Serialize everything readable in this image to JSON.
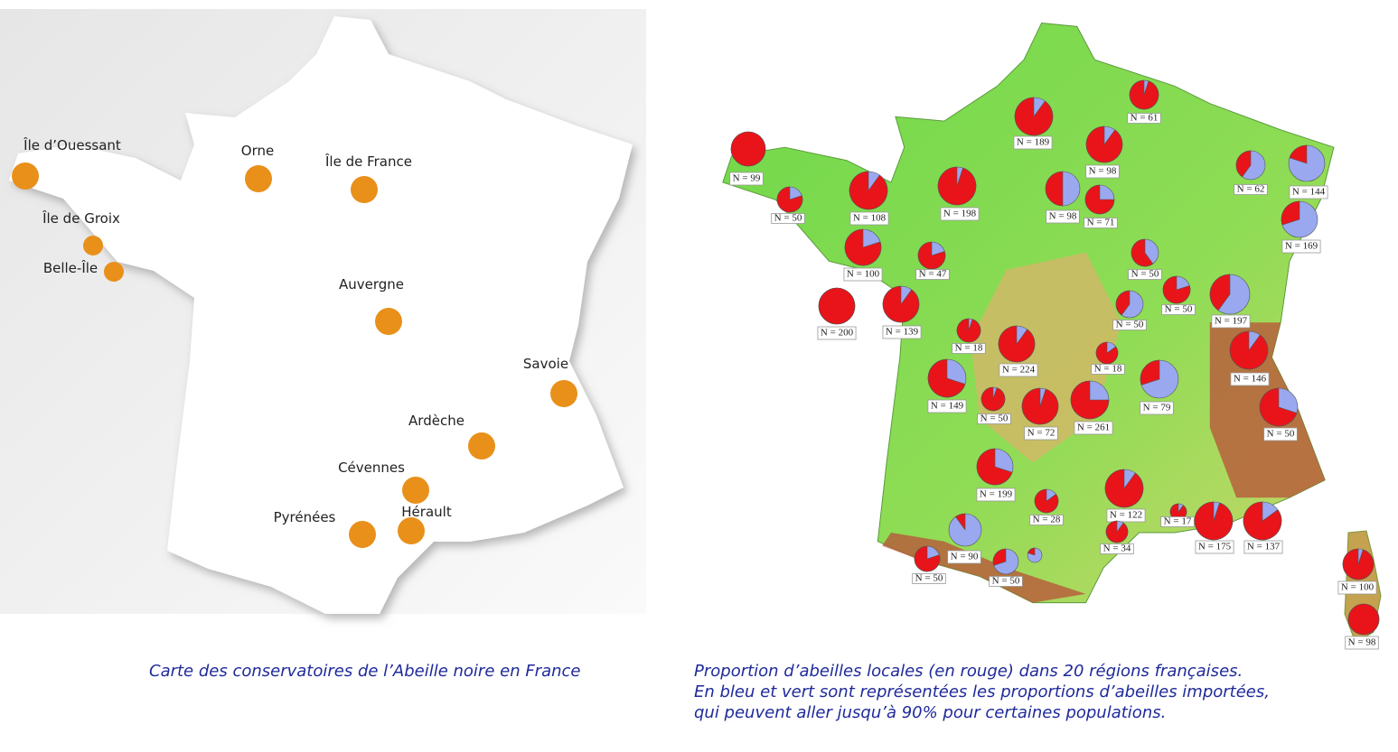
{
  "conservatory_map": {
    "sites": [
      {
        "label": "Île d’Ouessant"
      },
      {
        "label": "Orne"
      },
      {
        "label": "Île de France"
      },
      {
        "label": "Île de Groix"
      },
      {
        "label": "Belle-Île"
      },
      {
        "label": "Auvergne"
      },
      {
        "label": "Savoie"
      },
      {
        "label": "Ardèche"
      },
      {
        "label": "Cévennes"
      },
      {
        "label": "Pyrénées"
      },
      {
        "label": "Hérault"
      }
    ],
    "caption": "Carte des conservatoires de l’Abeille noire en France"
  },
  "bee_map": {
    "pies": [
      {
        "label": "N = 99",
        "local_share": 100
      },
      {
        "label": "N = 50",
        "local_share": 80
      },
      {
        "label": "N = 108",
        "local_share": 90
      },
      {
        "label": "N = 100",
        "local_share": 80
      },
      {
        "label": "N = 200",
        "local_share": 100
      },
      {
        "label": "N = 47",
        "local_share": 80
      },
      {
        "label": "N = 139",
        "local_share": 90
      },
      {
        "label": "N = 189",
        "local_share": 90
      },
      {
        "label": "N = 198",
        "local_share": 95
      },
      {
        "label": "N = 61",
        "local_share": 95
      },
      {
        "label": "N = 98",
        "local_share": 90
      },
      {
        "label": "N = 98",
        "local_share": 50
      },
      {
        "label": "N = 71",
        "local_share": 75
      },
      {
        "label": "N = 62",
        "local_share": 40
      },
      {
        "label": "N = 144",
        "local_share": 20
      },
      {
        "label": "N = 169",
        "local_share": 30
      },
      {
        "label": "N = 50",
        "local_share": 60
      },
      {
        "label": "N = 50",
        "local_share": 40
      },
      {
        "label": "N = 50",
        "local_share": 80
      },
      {
        "label": "N = 197",
        "local_share": 40
      },
      {
        "label": "N = 18",
        "local_share": 95
      },
      {
        "label": "N = 224",
        "local_share": 90
      },
      {
        "label": "N = 18",
        "local_share": 85
      },
      {
        "label": "N = 149",
        "local_share": 70
      },
      {
        "label": "N = 50",
        "local_share": 95
      },
      {
        "label": "N = 72",
        "local_share": 95
      },
      {
        "label": "N = 261",
        "local_share": 75
      },
      {
        "label": "N = 79",
        "local_share": 30
      },
      {
        "label": "N = 146",
        "local_share": 90
      },
      {
        "label": "N = 50",
        "local_share": 70
      },
      {
        "label": "N = 199",
        "local_share": 70
      },
      {
        "label": "N = 28",
        "local_share": 85
      },
      {
        "label": "N = 122",
        "local_share": 90
      },
      {
        "label": "N = 17",
        "local_share": 90
      },
      {
        "label": "N = 175",
        "local_share": 95
      },
      {
        "label": "N = 137",
        "local_share": 85
      },
      {
        "label": "N = 34",
        "local_share": 90
      },
      {
        "label": "N = 90",
        "local_share": 10
      },
      {
        "label": "N = 50",
        "local_share": 80
      },
      {
        "label": "N = 50",
        "local_share": 30
      },
      {
        "local_share": 20
      },
      {
        "label": "N = 100",
        "local_share": 95
      },
      {
        "label": "N = 98",
        "local_share": 100
      }
    ],
    "caption_lines": [
      "Proportion d’abeilles locales (en rouge) dans 20 régions françaises.",
      "En bleu et vert sont représentées les proportions d’abeilles importées,",
      "qui peuvent aller jusqu’à 90% pour certaines populations."
    ]
  }
}
